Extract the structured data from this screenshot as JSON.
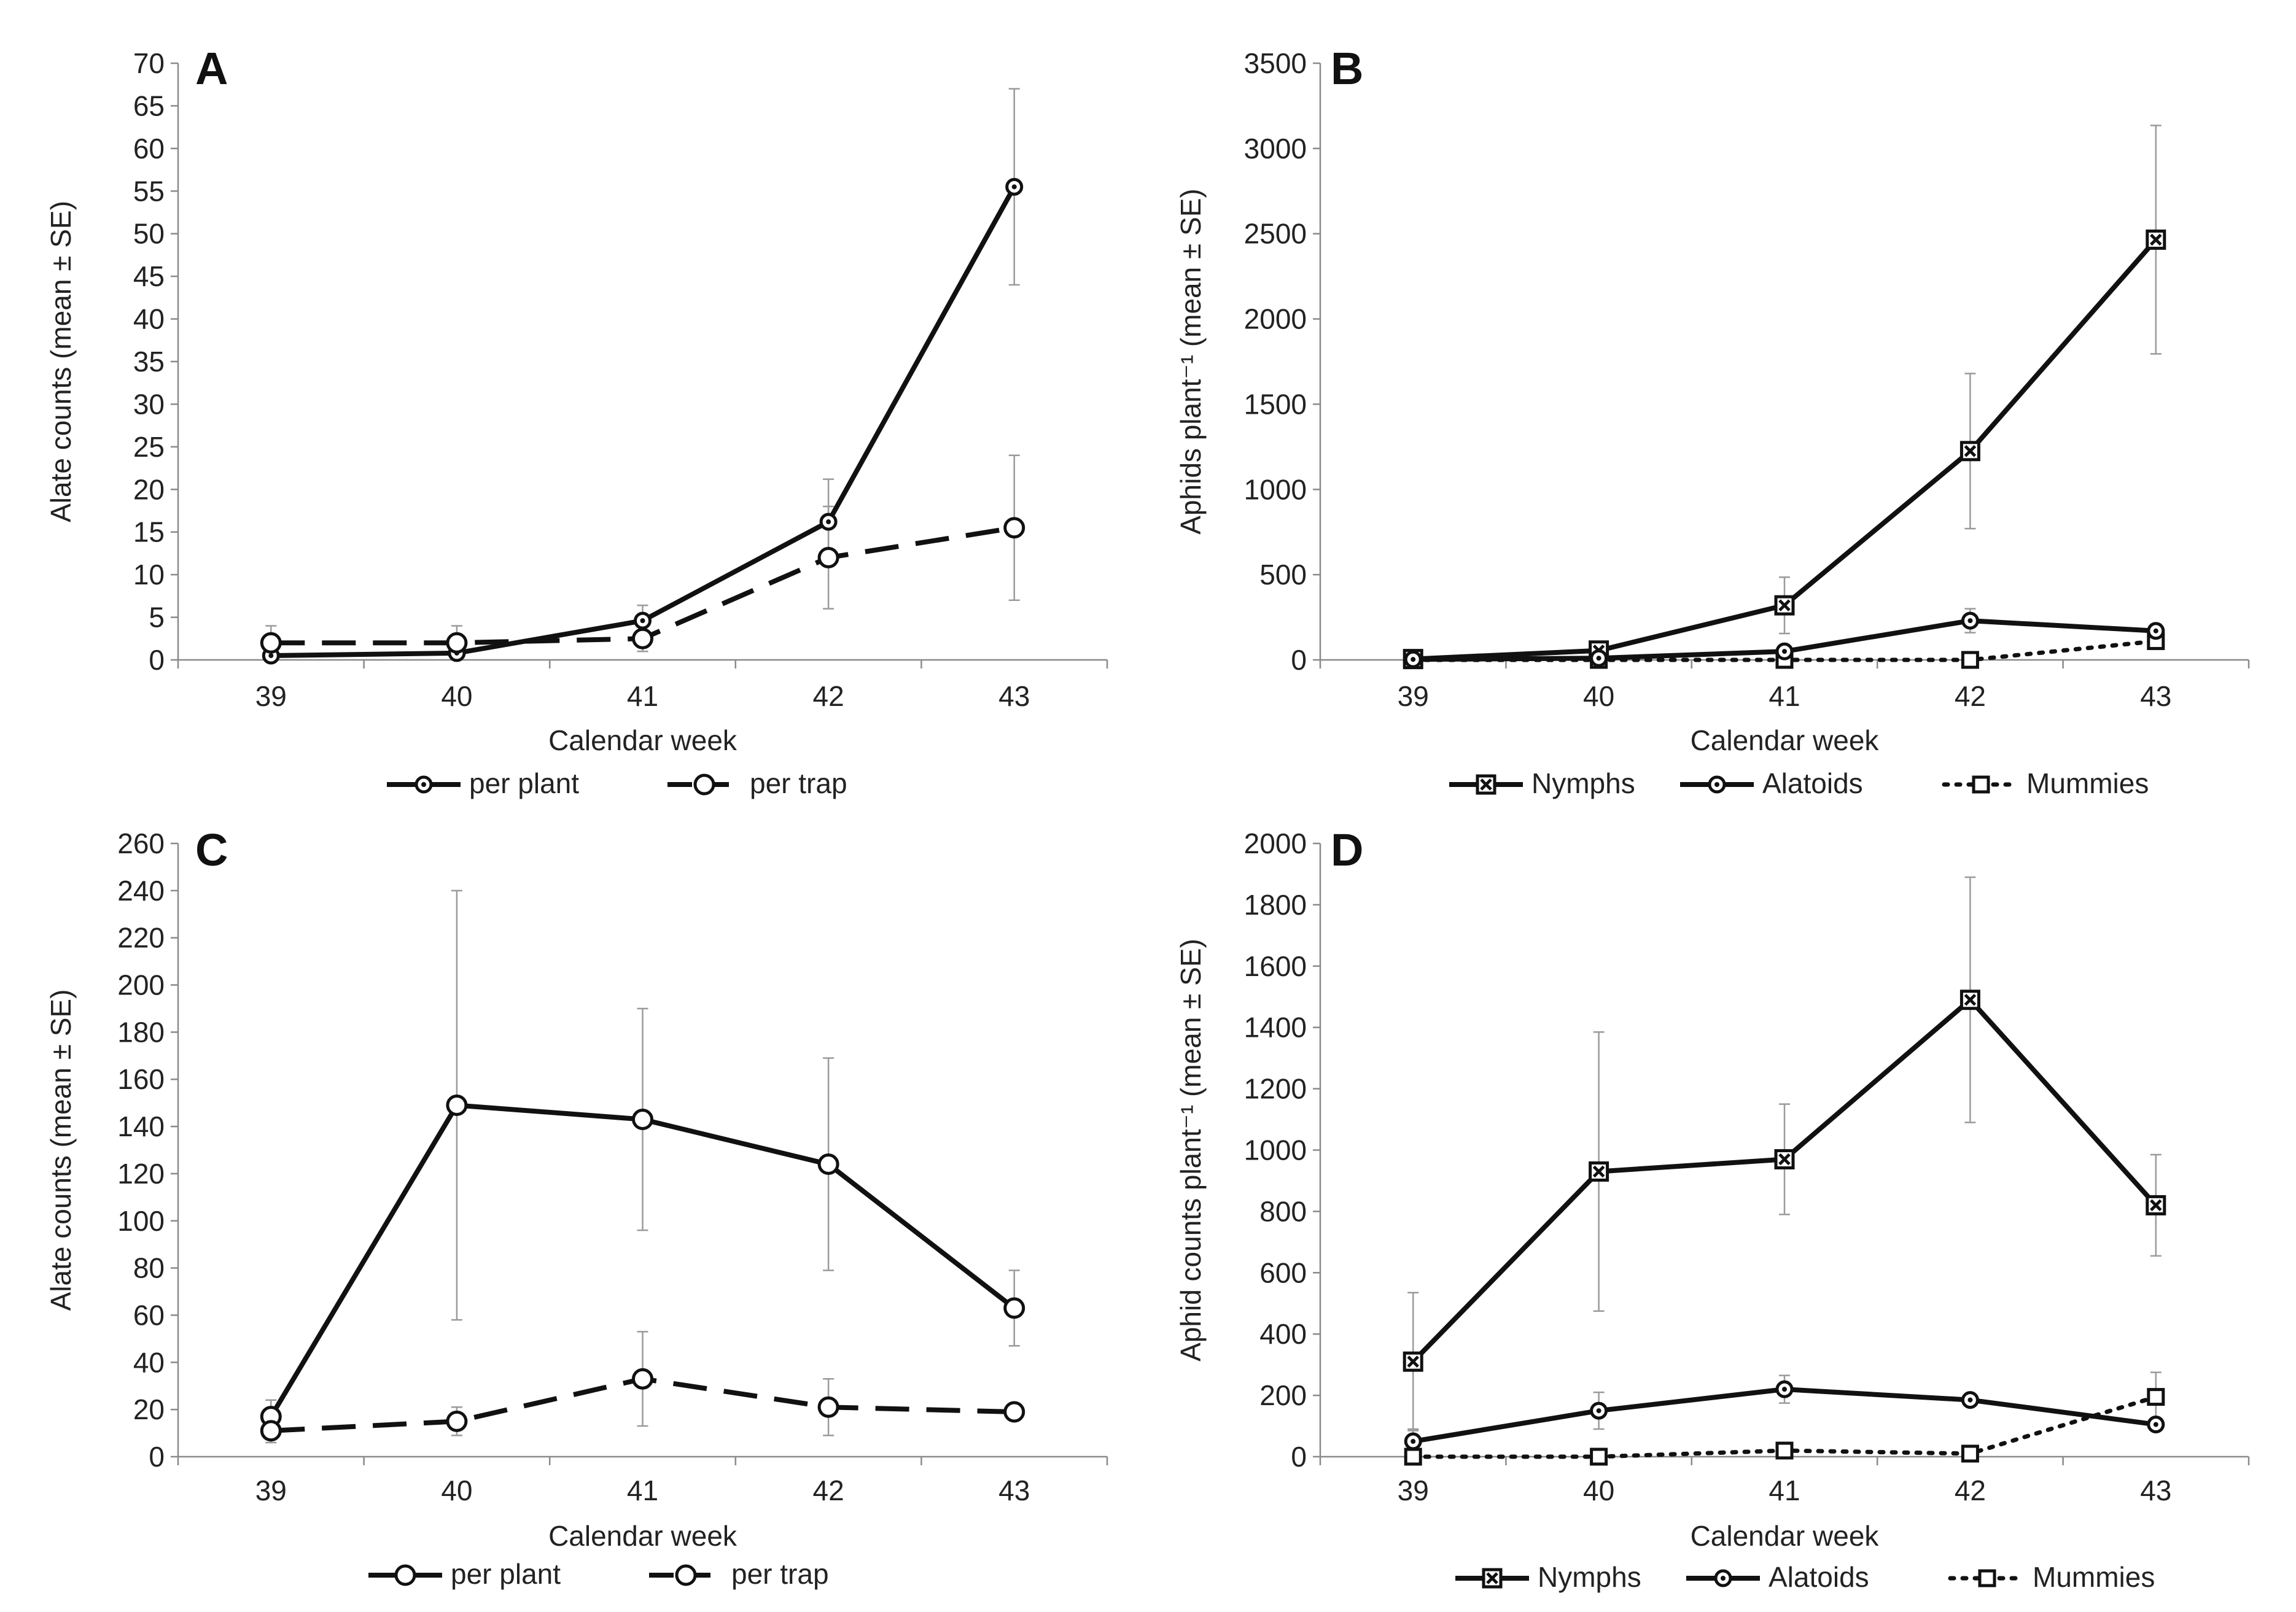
{
  "chart_data": [
    {
      "panel": "A",
      "type": "line",
      "categories": [
        "39",
        "40",
        "41",
        "42",
        "43"
      ],
      "xlabel": "Calendar week",
      "ylabel": "Alate counts (mean ± SE)",
      "ylim": [
        0,
        70
      ],
      "yticks": [
        0,
        5,
        10,
        15,
        20,
        25,
        30,
        35,
        40,
        45,
        50,
        55,
        60,
        65,
        70
      ],
      "series": [
        {
          "name": "per plant",
          "style": "solid",
          "marker": "circle-dot",
          "values": [
            0.5,
            0.8,
            4.6,
            16.2,
            55.5
          ],
          "err": [
            0.5,
            0.8,
            1.8,
            5.0,
            11.5
          ]
        },
        {
          "name": "per trap",
          "style": "dashed",
          "marker": "circle",
          "values": [
            2.0,
            2.0,
            2.5,
            12.0,
            15.5
          ],
          "err": [
            2.0,
            2.0,
            1.5,
            6.0,
            8.5
          ]
        }
      ]
    },
    {
      "panel": "B",
      "type": "line",
      "categories": [
        "39",
        "40",
        "41",
        "42",
        "43"
      ],
      "xlabel": "Calendar week",
      "ylabel": "Aphids plant⁻¹ (mean ± SE)",
      "ylim": [
        0,
        3500
      ],
      "yticks": [
        0,
        500,
        1000,
        1500,
        2000,
        2500,
        3000,
        3500
      ],
      "series": [
        {
          "name": "Nymphs",
          "style": "solid",
          "marker": "square-x",
          "values": [
            5,
            55,
            320,
            1225,
            2465
          ],
          "err": [
            5,
            20,
            165,
            455,
            670
          ]
        },
        {
          "name": "Alatoids",
          "style": "solid",
          "marker": "circle-dot",
          "values": [
            3,
            10,
            50,
            230,
            170
          ],
          "err": [
            3,
            5,
            25,
            70,
            40
          ]
        },
        {
          "name": "Mummies",
          "style": "dotted",
          "marker": "square",
          "values": [
            0,
            0,
            0,
            0,
            110
          ],
          "err": [
            0,
            0,
            0,
            0,
            30
          ]
        }
      ]
    },
    {
      "panel": "C",
      "type": "line",
      "categories": [
        "39",
        "40",
        "41",
        "42",
        "43"
      ],
      "xlabel": "Calendar week",
      "ylabel": "Alate counts (mean ± SE)",
      "ylim": [
        0,
        260
      ],
      "yticks": [
        0,
        20,
        40,
        60,
        80,
        100,
        120,
        140,
        160,
        180,
        200,
        220,
        240,
        260
      ],
      "series": [
        {
          "name": "per plant",
          "style": "solid",
          "marker": "circle",
          "values": [
            17,
            149,
            143,
            124,
            63
          ],
          "err": [
            7,
            91,
            47,
            45,
            16
          ]
        },
        {
          "name": "per trap",
          "style": "dashed",
          "marker": "circle",
          "values": [
            11,
            15,
            33,
            21,
            19
          ],
          "err": [
            5,
            6,
            20,
            12,
            3
          ]
        }
      ]
    },
    {
      "panel": "D",
      "type": "line",
      "categories": [
        "39",
        "40",
        "41",
        "42",
        "43"
      ],
      "xlabel": "Calendar week",
      "ylabel": "Aphid counts plant⁻¹ (mean ± SE)",
      "ylim": [
        0,
        2000
      ],
      "yticks": [
        0,
        200,
        400,
        600,
        800,
        1000,
        1200,
        1400,
        1600,
        1800,
        2000
      ],
      "series": [
        {
          "name": "Nymphs",
          "style": "solid",
          "marker": "square-x",
          "values": [
            310,
            930,
            970,
            1490,
            820
          ],
          "err": [
            225,
            455,
            180,
            400,
            165
          ]
        },
        {
          "name": "Alatoids",
          "style": "solid",
          "marker": "circle-dot",
          "values": [
            50,
            150,
            220,
            185,
            105
          ],
          "err": [
            40,
            60,
            45,
            20,
            10
          ]
        },
        {
          "name": "Mummies",
          "style": "dotted",
          "marker": "square",
          "values": [
            0,
            0,
            20,
            10,
            195
          ],
          "err": [
            0,
            0,
            10,
            5,
            80
          ]
        }
      ]
    }
  ]
}
